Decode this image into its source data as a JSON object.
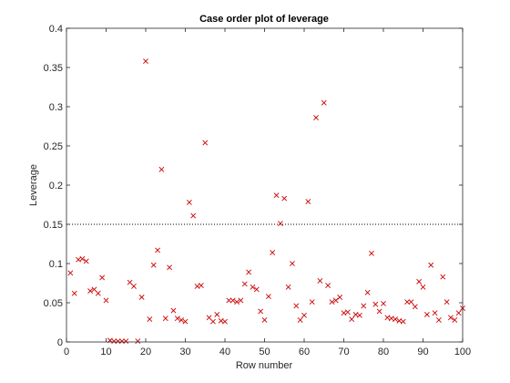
{
  "chart_data": {
    "type": "scatter",
    "title": "Case order plot of leverage",
    "xlabel": "Row number",
    "ylabel": "Leverage",
    "xlim": [
      0,
      100
    ],
    "ylim": [
      0,
      0.4
    ],
    "xticks": [
      0,
      10,
      20,
      30,
      40,
      50,
      60,
      70,
      80,
      90,
      100
    ],
    "xtick_labels": [
      "0",
      "10",
      "20",
      "30",
      "40",
      "50",
      "60",
      "70",
      "80",
      "90",
      "100"
    ],
    "yticks": [
      0,
      0.05,
      0.1,
      0.15,
      0.2,
      0.25,
      0.3,
      0.35,
      0.4
    ],
    "ytick_labels": [
      "0",
      "0.05",
      "0.1",
      "0.15",
      "0.2",
      "0.25",
      "0.3",
      "0.35",
      "0.4"
    ],
    "grid": false,
    "marker": "x",
    "marker_color": "#cc0000",
    "reference_line": {
      "y": 0.15,
      "style": "dotted",
      "color": "#000000"
    },
    "x": [
      1,
      2,
      3,
      4,
      5,
      6,
      7,
      8,
      9,
      10,
      11,
      12,
      13,
      14,
      15,
      16,
      17,
      18,
      19,
      20,
      21,
      22,
      23,
      24,
      25,
      26,
      27,
      28,
      29,
      30,
      31,
      32,
      33,
      34,
      35,
      36,
      37,
      38,
      39,
      40,
      41,
      42,
      43,
      44,
      45,
      46,
      47,
      48,
      49,
      50,
      51,
      52,
      53,
      54,
      55,
      56,
      57,
      58,
      59,
      60,
      61,
      62,
      63,
      64,
      65,
      66,
      67,
      68,
      69,
      70,
      71,
      72,
      73,
      74,
      75,
      76,
      77,
      78,
      79,
      80,
      81,
      82,
      83,
      84,
      85,
      86,
      87,
      88,
      89,
      90,
      91,
      92,
      93,
      94,
      95,
      96,
      97,
      98,
      99,
      100
    ],
    "y": [
      0.088,
      0.062,
      0.105,
      0.106,
      0.103,
      0.065,
      0.067,
      0.062,
      0.082,
      0.053,
      0.002,
      0.001,
      0.001,
      0.001,
      0.001,
      0.076,
      0.071,
      0.001,
      0.057,
      0.358,
      0.029,
      0.098,
      0.117,
      0.22,
      0.03,
      0.095,
      0.04,
      0.03,
      0.028,
      0.026,
      0.178,
      0.161,
      0.071,
      0.072,
      0.254,
      0.031,
      0.026,
      0.035,
      0.027,
      0.026,
      0.053,
      0.053,
      0.051,
      0.053,
      0.074,
      0.089,
      0.07,
      0.067,
      0.039,
      0.028,
      0.058,
      0.114,
      0.187,
      0.151,
      0.183,
      0.07,
      0.1,
      0.046,
      0.028,
      0.034,
      0.179,
      0.051,
      0.286,
      0.078,
      0.305,
      0.072,
      0.051,
      0.053,
      0.057,
      0.037,
      0.038,
      0.029,
      0.035,
      0.034,
      0.046,
      0.063,
      0.113,
      0.048,
      0.039,
      0.049,
      0.031,
      0.03,
      0.029,
      0.027,
      0.026,
      0.051,
      0.051,
      0.045,
      0.077,
      0.07,
      0.035,
      0.098,
      0.037,
      0.028,
      0.083,
      0.051,
      0.031,
      0.028,
      0.037,
      0.043
    ]
  }
}
